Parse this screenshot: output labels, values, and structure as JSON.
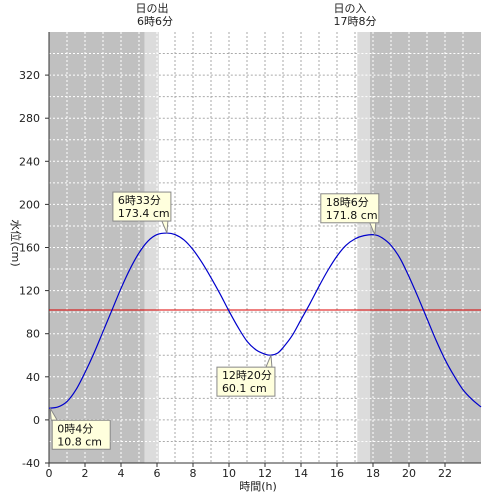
{
  "chart_data": {
    "type": "line",
    "xlabel": "時間(h)",
    "ylabel": "水位(cm)",
    "xlim": [
      0,
      24
    ],
    "ylim": [
      -40,
      360
    ],
    "x_ticks": [
      0,
      2,
      4,
      6,
      8,
      10,
      12,
      14,
      16,
      18,
      20,
      22
    ],
    "x_tick_labels": [
      "0",
      "2",
      "4",
      "6",
      "8",
      "10",
      "12",
      "14",
      "16",
      "18",
      "20",
      "22"
    ],
    "y_ticks": [
      -40,
      0,
      40,
      80,
      120,
      160,
      200,
      240,
      280,
      320
    ],
    "y_tick_labels": [
      "-40",
      "0",
      "40",
      "80",
      "120",
      "160",
      "200",
      "240",
      "280",
      "320"
    ],
    "grid": "dotted vertical every hour, horizontal every 20 cm",
    "sunrise": {
      "title": "日の出",
      "time": "6時6分",
      "hour": 6.1
    },
    "sunset": {
      "title": "日の入",
      "time": "17時8分",
      "hour": 17.133
    },
    "series": [
      {
        "color": "#0000cc",
        "x": [
          0,
          0.5,
          1,
          1.5,
          2,
          2.5,
          3,
          3.5,
          4,
          4.5,
          5,
          5.5,
          6,
          6.55,
          7,
          7.5,
          8,
          8.5,
          9,
          9.5,
          10,
          10.5,
          11,
          11.5,
          12,
          12.33,
          12.7,
          13,
          13.5,
          14,
          14.5,
          15,
          15.5,
          16,
          16.5,
          17,
          17.5,
          18.1,
          18.5,
          19,
          19.5,
          20,
          20.5,
          21,
          21.5,
          22,
          22.5,
          23,
          23.5,
          24
        ],
        "values": [
          10.8,
          12,
          17,
          28,
          44,
          62,
          82,
          102,
          122,
          140,
          155,
          166,
          172,
          173.4,
          172,
          167,
          158,
          146,
          132,
          117,
          101,
          86,
          73,
          65,
          61,
          60.1,
          62,
          67,
          78,
          93,
          108,
          124,
          139,
          152,
          162,
          168,
          171,
          171.8,
          169,
          162,
          150,
          133,
          114,
          94,
          74,
          56,
          41,
          28,
          19,
          12
        ]
      }
    ],
    "reference_line": {
      "value": 102,
      "color": "#dd0000"
    },
    "annotations": [
      {
        "time": "0時4分",
        "value": "10.8 cm",
        "x": 0.067,
        "y": 10.8,
        "placement": "below-right"
      },
      {
        "time": "6時33分",
        "value": "173.4 cm",
        "x": 6.55,
        "y": 173.4,
        "placement": "above-left"
      },
      {
        "time": "12時20分",
        "value": "60.1 cm",
        "x": 12.33,
        "y": 60.1,
        "placement": "below-left"
      },
      {
        "time": "18時6分",
        "value": "171.8 cm",
        "x": 18.1,
        "y": 171.8,
        "placement": "above-left"
      }
    ],
    "colors": {
      "night": "#c0c0c0",
      "twilight": "#dcdcdc",
      "day": "#ffffff",
      "grid_day": "#aaaaaa",
      "grid_night": "#ffffff",
      "annotation_bg": "#ffffdd",
      "annotation_border": "#888888"
    }
  }
}
